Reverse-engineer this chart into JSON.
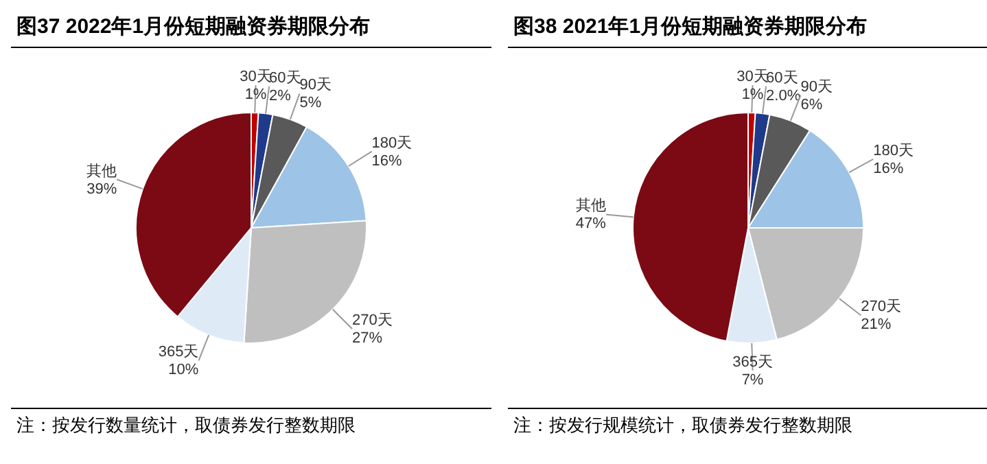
{
  "chart_data": [
    {
      "type": "pie",
      "title": "图37  2022年1月份短期融资券期限分布",
      "categories": [
        "30天",
        "60天",
        "90天",
        "180天",
        "270天",
        "365天",
        "其他"
      ],
      "values": [
        1,
        2,
        5,
        16,
        27,
        10,
        39
      ],
      "value_labels": [
        "1%",
        "2%",
        "5%",
        "16%",
        "27%",
        "10%",
        "39%"
      ],
      "colors": [
        "#c00000",
        "#1f3a8a",
        "#595959",
        "#9dc3e6",
        "#bfbfbf",
        "#deebf7",
        "#7b0a14"
      ],
      "legend": false,
      "annotations": [
        "注：按发行数量统计，取债券发行整数期限"
      ]
    },
    {
      "type": "pie",
      "title": "图38  2021年1月份短期融资券期限分布",
      "categories": [
        "30天",
        "60天",
        "90天",
        "180天",
        "270天",
        "365天",
        "其他"
      ],
      "values": [
        1,
        2,
        6,
        16,
        21,
        7,
        47
      ],
      "value_labels": [
        "1%",
        "2.0%",
        "6%",
        "16%",
        "21%",
        "7%",
        "47%"
      ],
      "colors": [
        "#c00000",
        "#1f3a8a",
        "#595959",
        "#9dc3e6",
        "#bfbfbf",
        "#deebf7",
        "#7b0a14"
      ],
      "legend": false,
      "annotations": [
        "注：按发行规模统计，取债券发行整数期限"
      ]
    }
  ]
}
